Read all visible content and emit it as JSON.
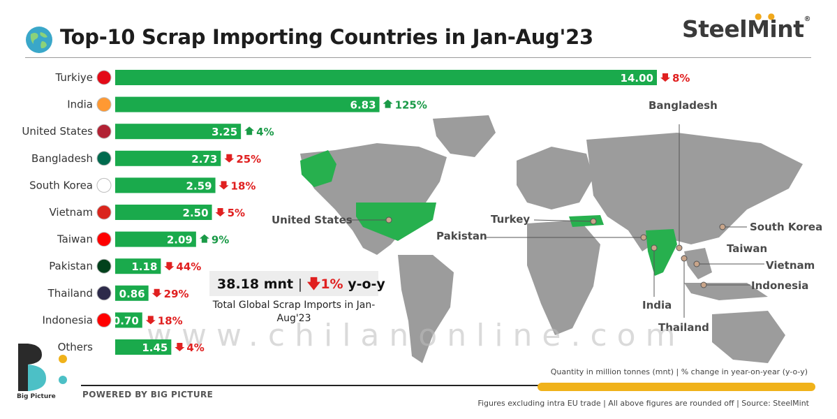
{
  "header": {
    "title": "Top-10 Scrap Importing Countries in Jan-Aug'23",
    "brand": "SteelMint",
    "brand_mark": "®"
  },
  "chart_data": {
    "type": "bar",
    "orientation": "horizontal",
    "categories": [
      "Turkiye",
      "India",
      "United States",
      "Bangladesh",
      "South Korea",
      "Vietnam",
      "Taiwan",
      "Pakistan",
      "Thailand",
      "Indonesia",
      "Others"
    ],
    "values": [
      14.0,
      6.83,
      3.25,
      2.73,
      2.59,
      2.5,
      2.09,
      1.18,
      0.86,
      0.7,
      1.45
    ],
    "value_labels": [
      "14.00",
      "6.83",
      "3.25",
      "2.73",
      "2.59",
      "2.50",
      "2.09",
      "1.18",
      "0.86",
      "0.70",
      "1.45"
    ],
    "yoy_change": [
      "8%",
      "125%",
      "4%",
      "25%",
      "18%",
      "5%",
      "9%",
      "44%",
      "29%",
      "18%",
      "4%"
    ],
    "yoy_direction": [
      "down",
      "up",
      "up",
      "down",
      "down",
      "down",
      "up",
      "down",
      "down",
      "down",
      "down"
    ],
    "bar_color": "#1aaa4c",
    "up_color": "#1a9a47",
    "down_color": "#e02020",
    "grid": false,
    "legend": "none",
    "xlim": [
      0,
      14
    ]
  },
  "summary": {
    "total": "38.18 mnt",
    "separator": "|",
    "change": "1%",
    "change_suffix": "y-o-y",
    "caption": "Total Global Scrap Imports in Jan-Aug'23"
  },
  "map": {
    "labels": [
      "United States",
      "Turkey",
      "Pakistan",
      "Bangladesh",
      "South Korea",
      "Taiwan",
      "Vietnam",
      "Indonesia",
      "India",
      "Thailand"
    ],
    "land_color": "#9c9c9c",
    "highlight_color": "#27b04e"
  },
  "watermark": "www.chilanonline.com",
  "notes": {
    "units": "Quantity in million tonnes (mnt)  |  % change in year-on-year (y-o-y)",
    "source": "Figures excluding intra EU trade  |  All above figures are rounded off  |  Source: SteelMint"
  },
  "footer": {
    "powered_by": "POWERED BY BIG PICTURE",
    "bp_name": "Big Picture"
  }
}
